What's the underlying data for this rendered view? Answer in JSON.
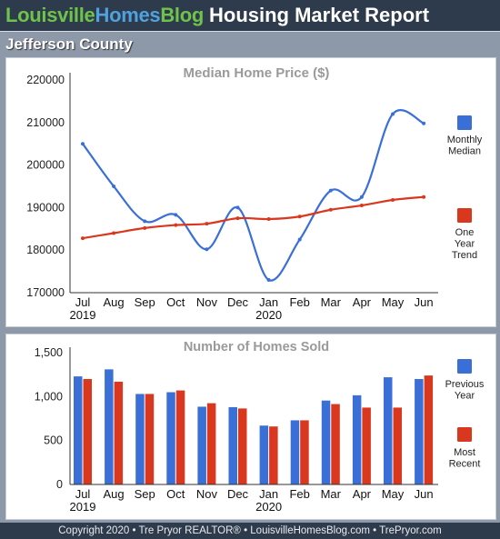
{
  "header": {
    "brand_part1": "Louisville",
    "brand_part2": "Homes",
    "brand_part3": "Blog",
    "title": "Housing Market Report"
  },
  "region": "Jefferson County",
  "footer": "Copyright 2020 • Tre Pryor REALTOR® • LouisvilleHomesBlog.com • TrePryor.com",
  "colors": {
    "blue": "#3a6fd8",
    "red": "#d9381e",
    "header_bg": "#2e3b4c"
  },
  "chart_data": [
    {
      "type": "line",
      "title": "Median Home Price ($)",
      "categories": [
        "Jul",
        "Aug",
        "Sep",
        "Oct",
        "Nov",
        "Dec",
        "Jan",
        "Feb",
        "Mar",
        "Apr",
        "May",
        "Jun"
      ],
      "year_labels": [
        "2019",
        "",
        "",
        "",
        "",
        "",
        "2020",
        "",
        "",
        "",
        "",
        ""
      ],
      "ylim": [
        170000,
        220000
      ],
      "yticks": [
        "220000",
        "210000",
        "200000",
        "190000",
        "180000",
        "170000"
      ],
      "series": [
        {
          "name": "Monthly Median",
          "legend_lines": [
            "Monthly",
            "Median"
          ],
          "color": "#3a6fd8",
          "values": [
            205000,
            195000,
            186800,
            188300,
            180200,
            190000,
            173000,
            182500,
            194000,
            192500,
            212000,
            209800
          ]
        },
        {
          "name": "One Year Trend",
          "legend_lines": [
            "One",
            "Year",
            "Trend"
          ],
          "color": "#d9381e",
          "values": [
            182800,
            184000,
            185200,
            185900,
            186200,
            187500,
            187300,
            187900,
            189500,
            190500,
            191800,
            192500
          ]
        }
      ],
      "grid": false
    },
    {
      "type": "bar",
      "title": "Number of Homes Sold",
      "categories": [
        "Jul",
        "Aug",
        "Sep",
        "Oct",
        "Nov",
        "Dec",
        "Jan",
        "Feb",
        "Mar",
        "Apr",
        "May",
        "Jun"
      ],
      "year_labels": [
        "2019",
        "",
        "",
        "",
        "",
        "",
        "2020",
        "",
        "",
        "",
        "",
        ""
      ],
      "ylim": [
        0,
        1500
      ],
      "yticks": [
        "1,500",
        "1,000",
        "500",
        "0"
      ],
      "series": [
        {
          "name": "Previous Year",
          "legend_lines": [
            "Previous",
            "Year"
          ],
          "color": "#3a6fd8",
          "values": [
            1230,
            1310,
            1030,
            1050,
            885,
            880,
            670,
            730,
            955,
            1015,
            1220,
            1200
          ]
        },
        {
          "name": "Most Recent",
          "legend_lines": [
            "Most",
            "Recent"
          ],
          "color": "#d9381e",
          "values": [
            1200,
            1170,
            1030,
            1070,
            925,
            865,
            660,
            730,
            915,
            875,
            875,
            1240
          ]
        }
      ],
      "grid": false
    }
  ]
}
